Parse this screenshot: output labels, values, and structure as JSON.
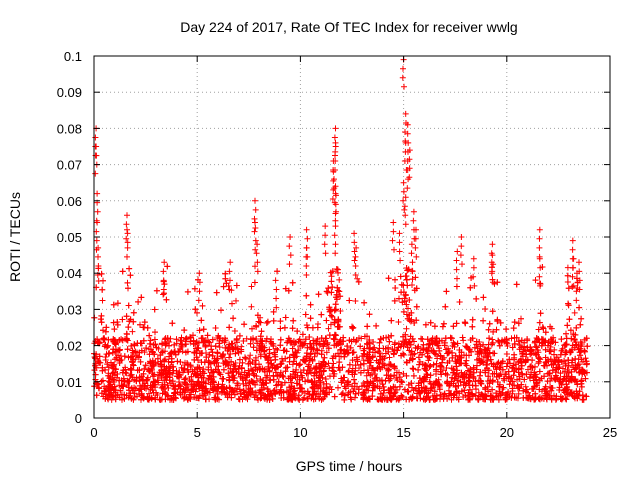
{
  "chart_data": {
    "type": "scatter",
    "title": "Day 224 of 2017, Rate Of TEC Index for receiver wwlg",
    "xlabel": "GPS time / hours",
    "ylabel": "ROTI / TECUs",
    "xlim": [
      0,
      25
    ],
    "ylim": [
      0,
      0.1
    ],
    "x_ticks": [
      "0",
      "5",
      "10",
      "15",
      "20",
      "25"
    ],
    "y_ticks": [
      "0",
      "0.01",
      "0.02",
      "0.03",
      "0.04",
      "0.05",
      "0.06",
      "0.07",
      "0.08",
      "0.09",
      "0.1"
    ],
    "grid": true,
    "marker": "+",
    "color": "#ff0000",
    "x_range_of_data": [
      0,
      23.9
    ],
    "baseline_band": [
      0.005,
      0.02
    ],
    "notable_points": [
      {
        "x": 0.1,
        "y": 0.08
      },
      {
        "x": 0.1,
        "y": 0.075
      },
      {
        "x": 0.15,
        "y": 0.062
      },
      {
        "x": 0.15,
        "y": 0.054
      },
      {
        "x": 0.2,
        "y": 0.047
      },
      {
        "x": 1.6,
        "y": 0.056
      },
      {
        "x": 1.6,
        "y": 0.052
      },
      {
        "x": 3.4,
        "y": 0.043
      },
      {
        "x": 5.1,
        "y": 0.04
      },
      {
        "x": 6.6,
        "y": 0.043
      },
      {
        "x": 7.8,
        "y": 0.06
      },
      {
        "x": 7.8,
        "y": 0.054
      },
      {
        "x": 7.9,
        "y": 0.048
      },
      {
        "x": 8.8,
        "y": 0.038
      },
      {
        "x": 9.5,
        "y": 0.05
      },
      {
        "x": 10.3,
        "y": 0.052
      },
      {
        "x": 10.3,
        "y": 0.047
      },
      {
        "x": 11.2,
        "y": 0.053
      },
      {
        "x": 11.7,
        "y": 0.08
      },
      {
        "x": 11.7,
        "y": 0.076
      },
      {
        "x": 11.6,
        "y": 0.071
      },
      {
        "x": 11.6,
        "y": 0.068
      },
      {
        "x": 11.7,
        "y": 0.064
      },
      {
        "x": 11.7,
        "y": 0.062
      },
      {
        "x": 11.7,
        "y": 0.053
      },
      {
        "x": 12.6,
        "y": 0.051
      },
      {
        "x": 12.7,
        "y": 0.047
      },
      {
        "x": 14.5,
        "y": 0.054
      },
      {
        "x": 14.8,
        "y": 0.051
      },
      {
        "x": 15.0,
        "y": 0.099
      },
      {
        "x": 15.1,
        "y": 0.084
      },
      {
        "x": 15.2,
        "y": 0.081
      },
      {
        "x": 15.1,
        "y": 0.076
      },
      {
        "x": 15.3,
        "y": 0.074
      },
      {
        "x": 15.2,
        "y": 0.071
      },
      {
        "x": 15.0,
        "y": 0.065
      },
      {
        "x": 15.1,
        "y": 0.061
      },
      {
        "x": 15.5,
        "y": 0.057
      },
      {
        "x": 15.6,
        "y": 0.052
      },
      {
        "x": 15.4,
        "y": 0.048
      },
      {
        "x": 17.8,
        "y": 0.05
      },
      {
        "x": 17.6,
        "y": 0.046
      },
      {
        "x": 18.4,
        "y": 0.044
      },
      {
        "x": 19.3,
        "y": 0.048
      },
      {
        "x": 19.3,
        "y": 0.045
      },
      {
        "x": 21.6,
        "y": 0.052
      },
      {
        "x": 21.6,
        "y": 0.044
      },
      {
        "x": 23.2,
        "y": 0.049
      },
      {
        "x": 23.2,
        "y": 0.044
      },
      {
        "x": 23.5,
        "y": 0.043
      },
      {
        "x": 23.4,
        "y": 0.04
      }
    ]
  }
}
